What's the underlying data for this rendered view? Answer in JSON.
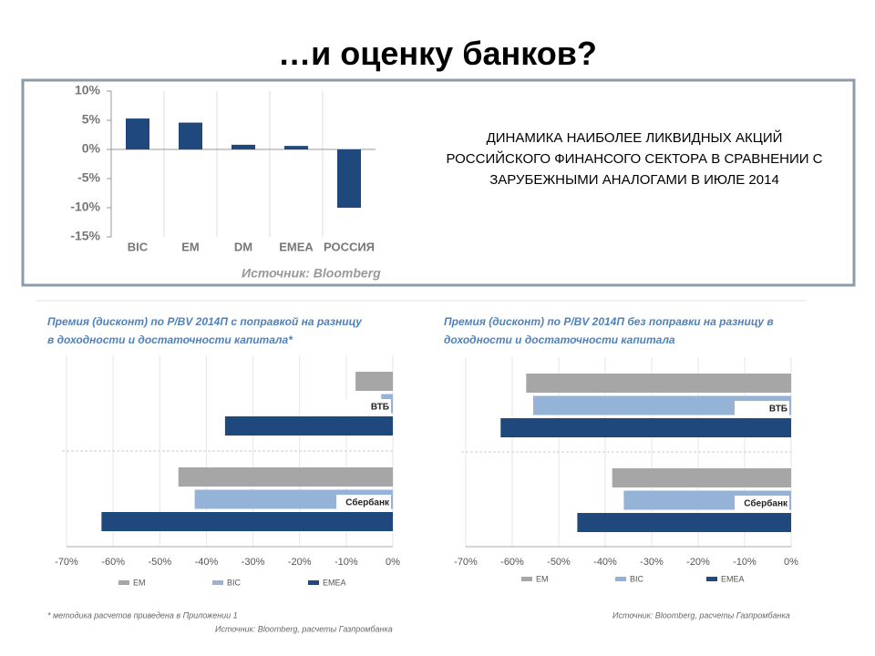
{
  "slide": {
    "title": "…и оценку банков?",
    "description": "ДИНАМИКА НАИБОЛЕЕ ЛИКВИДНЫХ АКЦИЙ РОССИЙСКОГО ФИНАНСОГО СЕКТОРА В СРАВНЕНИИ С ЗАРУБЕЖНЫМИ АНАЛОГАМИ В ИЮЛЕ 2014",
    "footnote": "* методика расчетов приведена в Приложении 1"
  },
  "chart_data": [
    {
      "type": "bar",
      "orientation": "vertical",
      "categories": [
        "BIC",
        "EM",
        "DM",
        "EMEA",
        "РОССИЯ"
      ],
      "values": [
        5.3,
        4.6,
        0.8,
        0.6,
        -10
      ],
      "color": "#1f497d",
      "ylim": [
        -15,
        10
      ],
      "yticks": [
        {
          "value": -15,
          "label": "-15%"
        },
        {
          "value": -10,
          "label": "-10%"
        },
        {
          "value": -5,
          "label": "-5%"
        },
        {
          "value": 0,
          "label": "0%"
        },
        {
          "value": 5,
          "label": "5%"
        },
        {
          "value": 10,
          "label": "10%"
        }
      ],
      "source": "Источник: Bloomberg",
      "grid": false
    },
    {
      "type": "bar",
      "orientation": "horizontal",
      "title": [
        "Премия (дисконт) по P/BV 2014П с поправкой на разницу",
        "в доходности и достаточности капитала*"
      ],
      "categories": [
        "ВТБ",
        "Сбербанк"
      ],
      "series": [
        {
          "name": "EM",
          "color": "#a6a6a6",
          "values": [
            -8,
            -46
          ]
        },
        {
          "name": "BIC",
          "color": "#95b3d7",
          "values": [
            -2.5,
            -42.5
          ]
        },
        {
          "name": "EMEA",
          "color": "#1f497d",
          "values": [
            -36,
            -62.5
          ]
        }
      ],
      "xlim": [
        -70,
        0
      ],
      "xticks": [
        {
          "value": -70,
          "label": "-70%"
        },
        {
          "value": -60,
          "label": "-60%"
        },
        {
          "value": -50,
          "label": "-50%"
        },
        {
          "value": -40,
          "label": "-40%"
        },
        {
          "value": -30,
          "label": "-30%"
        },
        {
          "value": -20,
          "label": "-20%"
        },
        {
          "value": -10,
          "label": "-10%"
        },
        {
          "value": 0,
          "label": "0%"
        }
      ],
      "source": "Источник: Bloomberg, расчеты Газпромбанка",
      "grid": true
    },
    {
      "type": "bar",
      "orientation": "horizontal",
      "title": [
        "Премия (дисконт) по P/BV 2014П без поправки на разницу в",
        "доходности и достаточности капитала"
      ],
      "categories": [
        "ВТБ",
        "Сбербанк"
      ],
      "series": [
        {
          "name": "EM",
          "color": "#a6a6a6",
          "values": [
            -57,
            -38.5
          ]
        },
        {
          "name": "BIC",
          "color": "#95b3d7",
          "values": [
            -55.5,
            -36
          ]
        },
        {
          "name": "EMEA",
          "color": "#1f497d",
          "values": [
            -62.5,
            -46
          ]
        }
      ],
      "xlim": [
        -70,
        0
      ],
      "xticks": [
        {
          "value": -70,
          "label": "-70%"
        },
        {
          "value": -60,
          "label": "-60%"
        },
        {
          "value": -50,
          "label": "-50%"
        },
        {
          "value": -40,
          "label": "-40%"
        },
        {
          "value": -30,
          "label": "-30%"
        },
        {
          "value": -20,
          "label": "-20%"
        },
        {
          "value": -10,
          "label": "-10%"
        },
        {
          "value": 0,
          "label": "0%"
        }
      ],
      "source": "Источник: Bloomberg, расчеты Газпромбанка",
      "grid": true
    }
  ]
}
